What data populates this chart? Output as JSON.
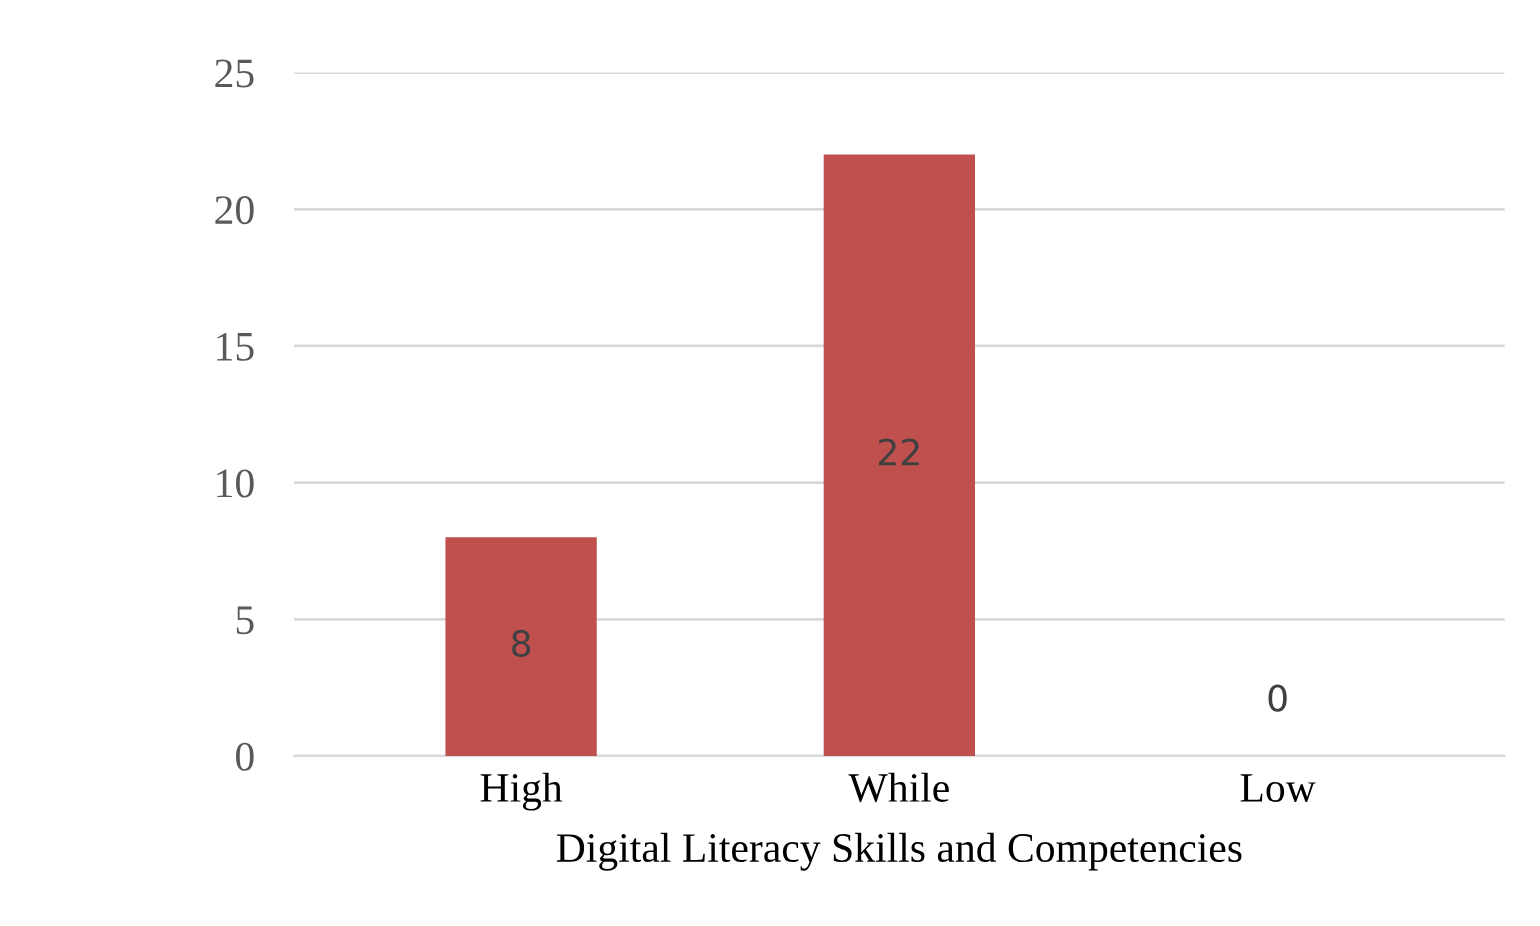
{
  "chart_data": {
    "type": "bar",
    "xlabel": "Digital Literacy Skills and Competencies",
    "categories": [
      "High",
      "While",
      "Low"
    ],
    "values": [
      8,
      22,
      0
    ],
    "color": "#c0504d",
    "ylim": [
      0,
      25
    ],
    "yticks": [
      0,
      5,
      10,
      15,
      20,
      25
    ],
    "grid": "y",
    "data_labels": true
  }
}
